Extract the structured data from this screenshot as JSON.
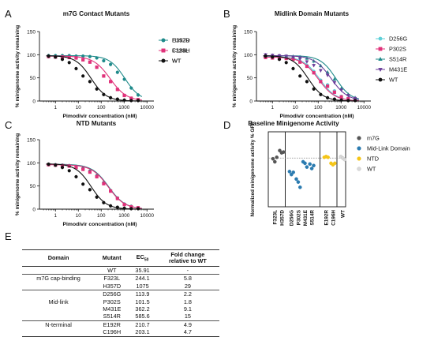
{
  "panel_letters": {
    "a": "A",
    "b": "B",
    "c": "C",
    "d": "D",
    "e": "E"
  },
  "chart_data": [
    {
      "type": "line",
      "panel": "A",
      "title": "m7G Contact Mutants",
      "xlabel": "Pimodivir concentration (nM)",
      "ylabel": "% minigenome activity remaining",
      "xscale": "log",
      "xlim": [
        0.2,
        20000
      ],
      "ylim": [
        0,
        150
      ],
      "xticks": [
        1,
        10,
        100,
        1000,
        10000
      ],
      "xtick_labels": [
        "1",
        "10",
        "100",
        "1000",
        "10000"
      ],
      "yticks": [
        0,
        50,
        100,
        150
      ],
      "ytick_labels": [
        "0",
        "50",
        "100",
        "150"
      ],
      "x": [
        0.5,
        1,
        2,
        4,
        8,
        16,
        32,
        64,
        128,
        256,
        512,
        1024,
        2048,
        4096
      ],
      "legend_position": "right",
      "series": [
        {
          "name": "H357D",
          "color": "#1f8a8a",
          "marker": "circle",
          "ec50": 1075,
          "top": 98,
          "hill": 1.3,
          "values": [
            98,
            98,
            98,
            98,
            97,
            97,
            96,
            93,
            87,
            79,
            62,
            47,
            28,
            13
          ]
        },
        {
          "name": "F323L",
          "color": "#e0327a",
          "marker": "square",
          "ec50": 244.1,
          "top": 97,
          "hill": 1.2,
          "values": [
            96,
            95,
            95,
            94,
            93,
            89,
            84,
            73,
            54,
            42,
            25,
            12,
            6,
            3
          ]
        },
        {
          "name": "WT",
          "color": "#111111",
          "marker": "circle",
          "ec50": 35.91,
          "top": 98,
          "hill": 1.3,
          "values": [
            97,
            95,
            90,
            83,
            70,
            54,
            42,
            26,
            14,
            7,
            4,
            2,
            1,
            1
          ]
        }
      ]
    },
    {
      "type": "line",
      "panel": "B",
      "title": "Midlink Domain Mutants",
      "xlabel": "Pimodivir concentration (nM)",
      "ylabel": "% minigenome activity remaining",
      "xscale": "log",
      "xlim": [
        0.2,
        20000
      ],
      "ylim": [
        0,
        150
      ],
      "xticks": [
        1,
        10,
        100,
        1000,
        10000
      ],
      "xtick_labels": [
        "1",
        "10",
        "100",
        "1000",
        "10000"
      ],
      "yticks": [
        0,
        50,
        100,
        150
      ],
      "ytick_labels": [
        "0",
        "50",
        "100",
        "150"
      ],
      "x": [
        0.5,
        1,
        2,
        4,
        8,
        16,
        32,
        64,
        128,
        256,
        512,
        1024,
        2048,
        4096
      ],
      "legend_position": "right",
      "series": [
        {
          "name": "D256G",
          "color": "#5fd0d8",
          "marker": "circle",
          "ec50": 113.9,
          "top": 96,
          "hill": 1.2,
          "values": [
            95,
            96,
            94,
            93,
            92,
            85,
            77,
            64,
            45,
            35,
            22,
            10,
            5,
            3
          ]
        },
        {
          "name": "P302S",
          "color": "#e0327a",
          "marker": "square",
          "ec50": 101.5,
          "top": 95,
          "hill": 1.2,
          "values": [
            94,
            93,
            92,
            92,
            90,
            84,
            75,
            61,
            42,
            32,
            19,
            9,
            5,
            2
          ]
        },
        {
          "name": "S514R",
          "color": "#1f8a8a",
          "marker": "triangle",
          "ec50": 585.6,
          "top": 98,
          "hill": 1.3,
          "values": [
            99,
            98,
            98,
            97,
            96,
            95,
            92,
            86,
            76,
            62,
            47,
            27,
            14,
            7
          ]
        },
        {
          "name": "M431E",
          "color": "#6a3d9a",
          "marker": "triangle-down",
          "ec50": 362.2,
          "top": 98,
          "hill": 1.2,
          "values": [
            100,
            99,
            98,
            97,
            95,
            91,
            85,
            77,
            66,
            56,
            40,
            24,
            12,
            6
          ]
        },
        {
          "name": "WT",
          "color": "#111111",
          "marker": "circle",
          "ec50": 35.91,
          "top": 98,
          "hill": 1.3,
          "values": [
            97,
            95,
            90,
            83,
            70,
            54,
            42,
            26,
            14,
            7,
            4,
            2,
            1,
            1
          ]
        }
      ]
    },
    {
      "type": "line",
      "panel": "C",
      "title": "NTD Mutants",
      "xlabel": "Pimodivir concentration (nM)",
      "ylabel": "% minigenome activity remaining",
      "xscale": "log",
      "xlim": [
        0.2,
        20000
      ],
      "ylim": [
        0,
        150
      ],
      "xticks": [
        1,
        10,
        100,
        1000,
        10000
      ],
      "xtick_labels": [
        "1",
        "10",
        "100",
        "1000",
        "10000"
      ],
      "yticks": [
        0,
        50,
        100,
        150
      ],
      "ytick_labels": [
        "0",
        "50",
        "100",
        "150"
      ],
      "x": [
        0.5,
        1,
        2,
        4,
        8,
        16,
        32,
        64,
        128,
        256,
        512,
        1024,
        2048,
        4096
      ],
      "legend_position": "right",
      "series": [
        {
          "name": "E192R",
          "color": "#1f8a8a",
          "marker": "circle",
          "ec50": 210.7,
          "top": 97,
          "hill": 1.2,
          "values": [
            97,
            96,
            95,
            94,
            92,
            88,
            82,
            72,
            57,
            40,
            24,
            11,
            6,
            3
          ]
        },
        {
          "name": "C196H",
          "color": "#e0327a",
          "marker": "square",
          "ec50": 203.1,
          "top": 96,
          "hill": 1.2,
          "values": [
            96,
            95,
            94,
            93,
            90,
            86,
            80,
            70,
            55,
            39,
            23,
            10,
            5,
            3
          ]
        },
        {
          "name": "WT",
          "color": "#111111",
          "marker": "circle",
          "ec50": 35.91,
          "top": 98,
          "hill": 1.3,
          "values": [
            97,
            95,
            90,
            83,
            70,
            54,
            42,
            26,
            14,
            7,
            4,
            2,
            1,
            1
          ]
        }
      ]
    },
    {
      "type": "scatter",
      "panel": "D",
      "title": "Baseline Minigenome Activity",
      "ylabel": "Normalized minigenome activity % GFP",
      "ylim": [
        0,
        100
      ],
      "reference_line": 65,
      "categories": [
        "F323L",
        "H357D",
        "D256G",
        "P302S",
        "M431E",
        "S514R",
        "E192R",
        "C196H",
        "WT"
      ],
      "groups": [
        {
          "name": "m7G",
          "color": "#555555",
          "categories": [
            "F323L",
            "H357D"
          ]
        },
        {
          "name": "Mid-Link Domain",
          "color": "#2b7bb0",
          "categories": [
            "D256G",
            "P302S",
            "M431E",
            "S514R"
          ]
        },
        {
          "name": "NTD",
          "color": "#f5c518",
          "categories": [
            "E192R",
            "C196H"
          ]
        },
        {
          "name": "WT",
          "color": "#d9d9d9",
          "categories": [
            "WT"
          ]
        }
      ],
      "points": {
        "F323L": [
          64,
          60,
          66
        ],
        "H357D": [
          75,
          72,
          73
        ],
        "D256G": [
          47,
          43,
          46
        ],
        "P302S": [
          37,
          33,
          26
        ],
        "M431E": [
          60,
          58,
          53
        ],
        "S514R": [
          57,
          51,
          55
        ],
        "E192R": [
          66,
          67,
          66
        ],
        "C196H": [
          58,
          56,
          58
        ],
        "WT": [
          67,
          65,
          63
        ]
      },
      "legend_position": "right"
    }
  ],
  "table": {
    "headers": [
      "Domain",
      "Mutant",
      "EC50",
      "Fold change relative to WT"
    ],
    "ec_main": "EC",
    "ec_sub": "50",
    "fold_line1": "Fold change",
    "fold_line2": "relative to WT",
    "rows": [
      {
        "domain": "",
        "mutant": "WT",
        "ec50": "35.91",
        "fold": "-"
      },
      {
        "domain": "m7G cap-binding",
        "mutant": "F323L",
        "ec50": "244.1",
        "fold": "5.8"
      },
      {
        "domain": "",
        "mutant": "H357D",
        "ec50": "1075",
        "fold": "29"
      },
      {
        "domain": "",
        "mutant": "D256G",
        "ec50": "113.9",
        "fold": "2.2"
      },
      {
        "domain": "Mid-link",
        "mutant": "P302S",
        "ec50": "101.5",
        "fold": "1.8"
      },
      {
        "domain": "",
        "mutant": "M431E",
        "ec50": "362.2",
        "fold": "9.1"
      },
      {
        "domain": "",
        "mutant": "S514R",
        "ec50": "585.6",
        "fold": "15"
      },
      {
        "domain": "N-terminal",
        "mutant": "E192R",
        "ec50": "210.7",
        "fold": "4.9"
      },
      {
        "domain": "",
        "mutant": "C196H",
        "ec50": "203.1",
        "fold": "4.7"
      }
    ]
  }
}
